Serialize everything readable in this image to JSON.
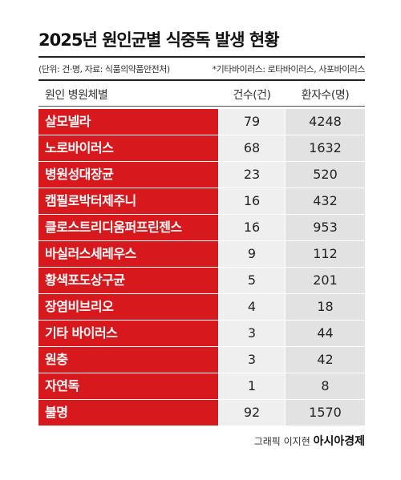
{
  "header": {
    "title": "2025년 원인균별 식중독 발생 현황",
    "unit_note": "(단위: 건·명, 자료: 식품의약품안전처)",
    "footnote": "*기타바이러스: 로타바이러스, 사포바이러스"
  },
  "table": {
    "columns": [
      "원인 병원체별",
      "건수(건)",
      "환자수(명)"
    ],
    "rows": [
      [
        "살모넬라",
        79,
        4248
      ],
      [
        "노로바이러스",
        68,
        1632
      ],
      [
        "병원성대장균",
        23,
        520
      ],
      [
        "캠필로박터제주니",
        16,
        432
      ],
      [
        "클로스트리디움퍼프린젠스",
        16,
        953
      ],
      [
        "바실러스세레우스",
        9,
        112
      ],
      [
        "황색포도상구균",
        5,
        201
      ],
      [
        "장염비브리오",
        4,
        18
      ],
      [
        "기타 바이러스",
        3,
        44
      ],
      [
        "원충",
        3,
        42
      ],
      [
        "자연독",
        1,
        8
      ],
      [
        "불명",
        92,
        1570
      ]
    ]
  },
  "footer": {
    "credit": "그래픽 이지현",
    "publisher": "아시아경제"
  }
}
